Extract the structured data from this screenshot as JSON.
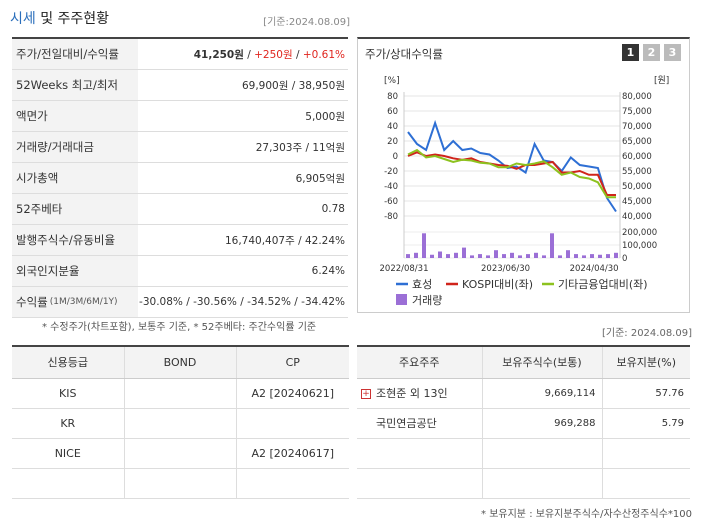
{
  "header": {
    "title_main": "시세",
    "title_rest": " 및 주주현황",
    "date": "[기준:2024.08.09]"
  },
  "info": [
    {
      "label": "주가/전일대비/수익률",
      "v1": "41,250원",
      "v2": "+250원",
      "v3": "+0.61%"
    },
    {
      "label": "52Weeks 최고/최저",
      "value": "69,900원 / 38,950원"
    },
    {
      "label": "액면가",
      "value": "5,000원"
    },
    {
      "label": "거래량/거래대금",
      "value": "27,303주 / 11억원"
    },
    {
      "label": "시가총액",
      "value": "6,905억원"
    },
    {
      "label": "52주베타",
      "value": "0.78"
    },
    {
      "label": "발행주식수/유동비율",
      "value": "16,740,407주 / 42.24%"
    },
    {
      "label": "외국인지분율",
      "value": "6.24%"
    },
    {
      "label": "수익률",
      "sub": "(1M/3M/6M/1Y)",
      "value": "-30.08% / -30.56% / -34.52% / -34.42%"
    }
  ],
  "note1": "* 수정주가(차트포함), 보통주 기준, * 52주베타: 주간수익률 기준",
  "chart_title": "주가/상대수익률",
  "pages": [
    "1",
    "2",
    "3"
  ],
  "chart_data": {
    "type": "line",
    "x_ticks": [
      "2022/08/31",
      "2023/06/30",
      "2024/04/30"
    ],
    "left_axis": {
      "unit": "[%]",
      "ticks": [
        "80",
        "60",
        "40",
        "20",
        "0",
        "-20",
        "-40",
        "-60",
        "-80"
      ],
      "ylim": [
        -80,
        80
      ]
    },
    "right_axis": {
      "unit": "[원]",
      "ticks": [
        "80,000",
        "75,000",
        "70,000",
        "65,000",
        "60,000",
        "55,000",
        "50,000",
        "45,000",
        "40,000"
      ],
      "ylim": [
        40000,
        80000
      ]
    },
    "volume_axis": {
      "ticks": [
        "200,000",
        "100,000",
        "0"
      ],
      "ylim": [
        0,
        200000
      ]
    },
    "series": [
      {
        "name": "효성",
        "color": "#2e6fd4",
        "values": [
          68000,
          64000,
          62000,
          71000,
          62000,
          65000,
          62000,
          62500,
          61000,
          60500,
          58500,
          56000,
          56500,
          54500,
          64000,
          58500,
          58000,
          55000,
          59500,
          57000,
          56500,
          56000,
          46000,
          41500
        ]
      },
      {
        "name": "KOSPI대비(좌)",
        "color": "#d0241b",
        "values": [
          0,
          5,
          0,
          2,
          0,
          -3,
          -5,
          -3,
          -8,
          -10,
          -12,
          -13,
          -17,
          -12,
          -12,
          -10,
          -8,
          -22,
          -22,
          -20,
          -25,
          -25,
          -52,
          -52
        ]
      },
      {
        "name": "기타금융업대비(좌)",
        "color": "#8dc21f",
        "values": [
          2,
          8,
          -2,
          0,
          -4,
          -8,
          -5,
          -6,
          -9,
          -10,
          -15,
          -15,
          -10,
          -12,
          -10,
          -7,
          -15,
          -25,
          -22,
          -28,
          -30,
          -35,
          -55,
          -55
        ]
      }
    ],
    "volume": {
      "name": "거래량",
      "color": "#9b6fd6",
      "values": [
        30000,
        40000,
        190000,
        25000,
        50000,
        30000,
        40000,
        80000,
        20000,
        30000,
        20000,
        60000,
        30000,
        40000,
        20000,
        30000,
        40000,
        20000,
        190000,
        20000,
        60000,
        30000,
        20000,
        30000,
        25000,
        30000,
        40000
      ]
    }
  },
  "date2": "[기준: 2024.08.09]",
  "credit": {
    "headers": [
      "신용등급",
      "BOND",
      "CP"
    ],
    "rows": [
      [
        "KIS",
        "",
        "A2 [20240621]"
      ],
      [
        "KR",
        "",
        ""
      ],
      [
        "NICE",
        "",
        "A2 [20240617]"
      ],
      [
        "",
        "",
        ""
      ]
    ]
  },
  "holders": {
    "headers": [
      "주요주주",
      "보유주식수(보통)",
      "보유지분(%)"
    ],
    "rows": [
      [
        "조현준 외 13인",
        "9,669,114",
        "57.76"
      ],
      [
        "국민연금공단",
        "969,288",
        "5.79"
      ],
      [
        "",
        "",
        ""
      ],
      [
        "",
        "",
        ""
      ]
    ]
  },
  "note2": "* 보유지분 : 보유지분주식수/자수산정주식수*100"
}
